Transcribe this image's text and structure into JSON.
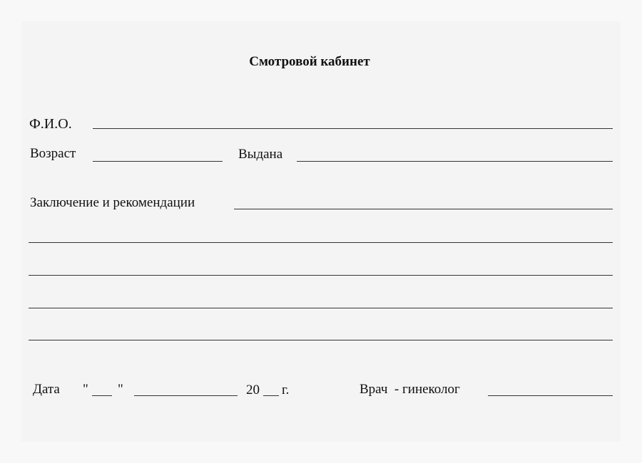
{
  "form": {
    "title": "Смотровой кабинет",
    "fio_label": "Ф.И.О.",
    "age_label": "Возраст",
    "issued_label": "Выдана",
    "conclusion_label": "Заключение и рекомендации",
    "date_label": "Дата",
    "quote_open": "\"",
    "quote_close": "\"",
    "year_prefix": "20",
    "year_suffix": "г.",
    "doctor_label": "Врач  - гинеколог"
  }
}
